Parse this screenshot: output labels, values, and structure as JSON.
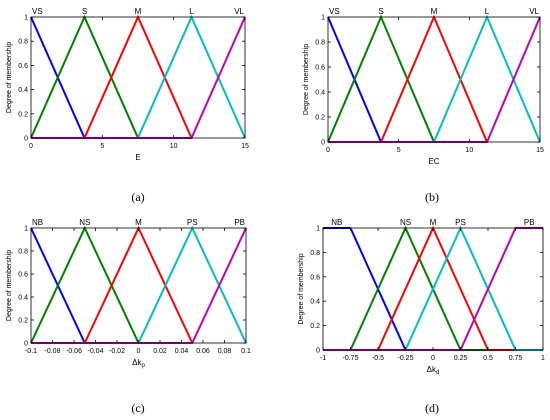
{
  "colors": {
    "blue": "#0000ff",
    "green": "#008000",
    "red": "#ff0000",
    "cyan": "#00bfbf",
    "magenta": "#bf00bf",
    "axis": "#000000",
    "tick_text": "#000000"
  },
  "chart_data": [
    {
      "type": "line",
      "panel": "(a)",
      "xlabel": "E",
      "ylabel": "Degree of membership",
      "xlim": [
        0,
        15
      ],
      "ylim": [
        0,
        1
      ],
      "xticks": [
        0,
        5,
        10,
        15
      ],
      "xtick_labels": [
        "0",
        "5",
        "10",
        "15"
      ],
      "yticks": [
        0,
        0.2,
        0.4,
        0.6,
        0.8,
        1
      ],
      "ytick_labels": [
        "0",
        "0.2",
        "0.4",
        "0.6",
        "0.8",
        "1"
      ],
      "grid": false,
      "series": [
        {
          "name": "VS",
          "color": "blue",
          "label_x": 0,
          "x": [
            0,
            3.75
          ],
          "y": [
            1,
            0
          ]
        },
        {
          "name": "S",
          "color": "green",
          "label_x": 3.75,
          "x": [
            0,
            3.75,
            7.5
          ],
          "y": [
            0,
            1,
            0
          ]
        },
        {
          "name": "M",
          "color": "red",
          "label_x": 7.5,
          "x": [
            3.75,
            7.5,
            11.25
          ],
          "y": [
            0,
            1,
            0
          ]
        },
        {
          "name": "L",
          "color": "cyan",
          "label_x": 11.25,
          "x": [
            7.5,
            11.25,
            15
          ],
          "y": [
            0,
            1,
            0
          ]
        },
        {
          "name": "VL",
          "color": "magenta",
          "label_x": 15,
          "x": [
            0,
            11.25,
            15
          ],
          "y": [
            0,
            0,
            1
          ]
        }
      ]
    },
    {
      "type": "line",
      "panel": "(b)",
      "xlabel": "EC",
      "ylabel": "Degree of membership",
      "xlim": [
        0,
        15
      ],
      "ylim": [
        0,
        1
      ],
      "xticks": [
        0,
        5,
        10,
        15
      ],
      "xtick_labels": [
        "0",
        "5",
        "10",
        "15"
      ],
      "yticks": [
        0,
        0.2,
        0.4,
        0.6,
        0.8,
        1
      ],
      "ytick_labels": [
        "0",
        "0.2",
        "0.4",
        "0.6",
        "0.8",
        "1"
      ],
      "grid": false,
      "series": [
        {
          "name": "VS",
          "color": "blue",
          "label_x": 0,
          "x": [
            0,
            3.75
          ],
          "y": [
            1,
            0
          ]
        },
        {
          "name": "S",
          "color": "green",
          "label_x": 3.75,
          "x": [
            0,
            3.75,
            7.5
          ],
          "y": [
            0,
            1,
            0
          ]
        },
        {
          "name": "M",
          "color": "red",
          "label_x": 7.5,
          "x": [
            3.75,
            7.5,
            11.25
          ],
          "y": [
            0,
            1,
            0
          ]
        },
        {
          "name": "L",
          "color": "cyan",
          "label_x": 11.25,
          "x": [
            7.5,
            11.25,
            15
          ],
          "y": [
            0,
            1,
            0
          ]
        },
        {
          "name": "VL",
          "color": "magenta",
          "label_x": 15,
          "x": [
            0,
            11.25,
            15
          ],
          "y": [
            0,
            0,
            1
          ]
        }
      ]
    },
    {
      "type": "line",
      "panel": "(c)",
      "xlabel": "Δk",
      "xlabel_sub": "p",
      "ylabel": "Degree of membership",
      "xlim": [
        -0.1,
        0.1
      ],
      "ylim": [
        0,
        1
      ],
      "xticks": [
        -0.1,
        -0.08,
        -0.06,
        -0.04,
        -0.02,
        0,
        0.02,
        0.04,
        0.06,
        0.08,
        0.1
      ],
      "xtick_labels": [
        "-0.1",
        "-0.08",
        "-0.06",
        "-0.04",
        "-0.02",
        "0",
        "0.02",
        "0.04",
        "0.06",
        "0.08",
        "0.1"
      ],
      "yticks": [
        0,
        0.2,
        0.4,
        0.6,
        0.8,
        1
      ],
      "ytick_labels": [
        "0",
        "0.2",
        "0.4",
        "0.6",
        "0.8",
        "1"
      ],
      "grid": false,
      "series": [
        {
          "name": "NB",
          "color": "blue",
          "label_x": -0.1,
          "x": [
            -0.1,
            -0.05
          ],
          "y": [
            1,
            0
          ]
        },
        {
          "name": "NS",
          "color": "green",
          "label_x": -0.05,
          "x": [
            -0.1,
            -0.05,
            0
          ],
          "y": [
            0,
            1,
            0
          ]
        },
        {
          "name": "M",
          "color": "red",
          "label_x": 0,
          "x": [
            -0.05,
            0,
            0.05
          ],
          "y": [
            0,
            1,
            0
          ]
        },
        {
          "name": "PS",
          "color": "cyan",
          "label_x": 0.05,
          "x": [
            0,
            0.05,
            0.1
          ],
          "y": [
            0,
            1,
            0
          ]
        },
        {
          "name": "PB",
          "color": "magenta",
          "label_x": 0.1,
          "x": [
            -0.1,
            0.05,
            0.1
          ],
          "y": [
            0,
            0,
            1
          ]
        }
      ]
    },
    {
      "type": "line",
      "panel": "(d)",
      "xlabel": "Δk",
      "xlabel_sub": "d",
      "ylabel": "Degree of membership",
      "xlim": [
        -1,
        1
      ],
      "ylim": [
        0,
        1
      ],
      "xticks": [
        -1,
        -0.75,
        -0.5,
        -0.25,
        0,
        0.25,
        0.5,
        0.75,
        1
      ],
      "xtick_labels": [
        "-1",
        "-0.75",
        "-0.5",
        "-0.25",
        "0",
        "0.25",
        "0.5",
        "0.75",
        "1"
      ],
      "yticks": [
        0,
        0.2,
        0.4,
        0.6,
        0.8,
        1
      ],
      "ytick_labels": [
        "0",
        "0.2",
        "0.4",
        "0.6",
        "0.8",
        "1"
      ],
      "grid": false,
      "series": [
        {
          "name": "NB",
          "color": "blue",
          "label_x": -0.875,
          "x": [
            -1,
            -0.75,
            -0.25,
            1
          ],
          "y": [
            1,
            1,
            0,
            0
          ]
        },
        {
          "name": "NS",
          "color": "green",
          "label_x": -0.25,
          "x": [
            -1,
            -0.75,
            -0.25,
            0.25,
            1
          ],
          "y": [
            0,
            0,
            1,
            0,
            0
          ]
        },
        {
          "name": "M",
          "color": "red",
          "label_x": 0,
          "x": [
            -1,
            -0.5,
            0,
            0.5,
            1
          ],
          "y": [
            0,
            0,
            1,
            0,
            0
          ]
        },
        {
          "name": "PS",
          "color": "cyan",
          "label_x": 0.25,
          "x": [
            -1,
            -0.25,
            0.25,
            0.75,
            1
          ],
          "y": [
            0,
            0,
            1,
            0,
            0
          ]
        },
        {
          "name": "PB",
          "color": "magenta",
          "label_x": 0.875,
          "x": [
            -1,
            0.25,
            0.75,
            1
          ],
          "y": [
            0,
            0,
            1,
            1
          ]
        }
      ]
    }
  ]
}
